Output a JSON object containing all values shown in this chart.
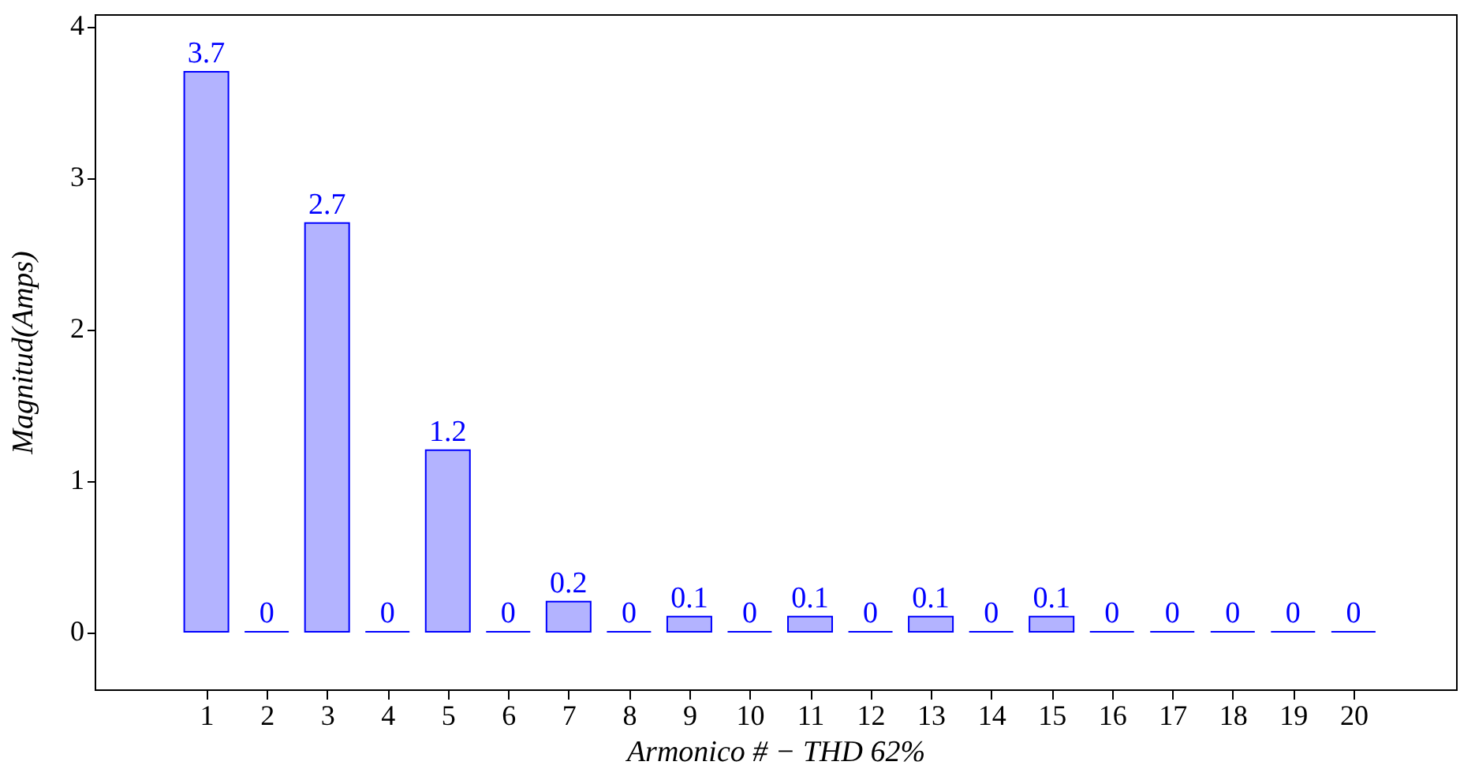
{
  "chart_data": {
    "type": "bar",
    "xlabel": "Armonico # − THD 62%",
    "ylabel": "Magnitud(Amps)",
    "x": [
      1,
      2,
      3,
      4,
      5,
      6,
      7,
      8,
      9,
      10,
      11,
      12,
      13,
      14,
      15,
      16,
      17,
      18,
      19,
      20
    ],
    "series": [
      {
        "color": "#0000ff",
        "values": [
          3.7,
          0,
          2.7,
          0,
          1.2,
          0,
          0.2,
          0,
          0.1,
          0,
          0.1,
          0,
          0.1,
          0,
          0.1,
          0,
          0,
          0,
          0,
          0
        ]
      }
    ],
    "xlim": [
      -0.85,
      21.7
    ],
    "ylim": [
      -0.38,
      4.08
    ],
    "xticks": [
      1,
      2,
      3,
      4,
      5,
      6,
      7,
      8,
      9,
      10,
      11,
      12,
      13,
      14,
      15,
      16,
      17,
      18,
      19,
      20
    ],
    "yticks": [
      0,
      1,
      2,
      3,
      4
    ],
    "data_labels": true,
    "grid": false
  }
}
